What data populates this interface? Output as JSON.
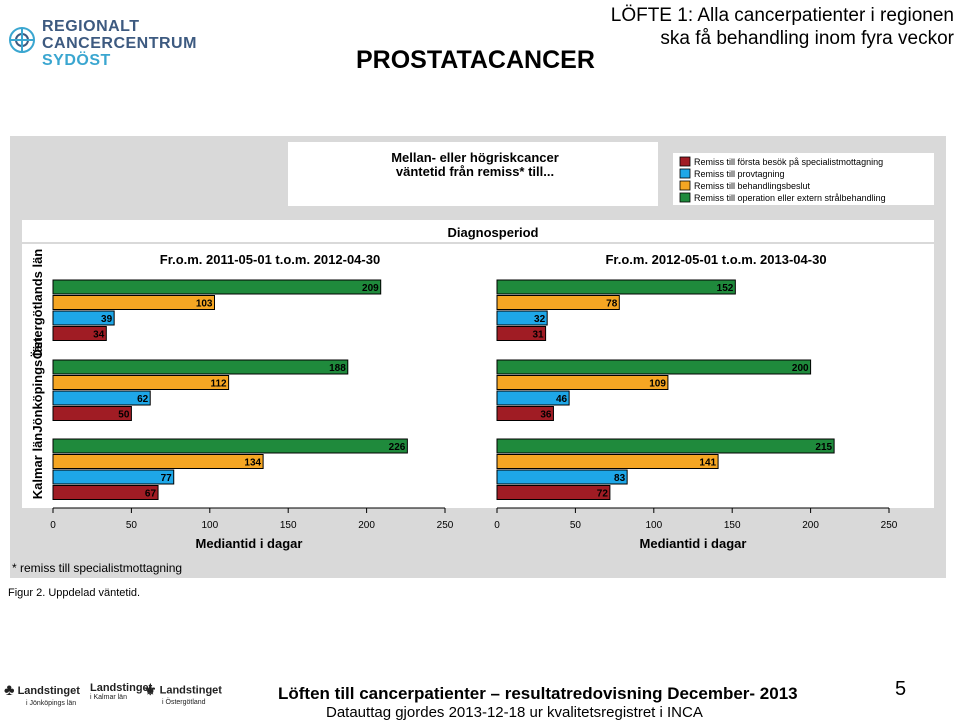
{
  "header": {
    "logo_lines": [
      "REGIONALT",
      "CANCERCENTRUM",
      "SYDÖST"
    ],
    "main_title": "PROSTATACANCER",
    "promise_line1": "LÖFTE 1: Alla cancerpatienter i regionen",
    "promise_line2": "ska få behandling inom fyra veckor"
  },
  "colors": {
    "first_visit": "#a01c24",
    "sampling": "#1ea7e8",
    "decision": "#f5a623",
    "treatment": "#1f8a3c",
    "panel": "#d9d9d9"
  },
  "chart_data": {
    "type": "bar",
    "orientation": "horizontal",
    "title": "Mellan- eller högriskcancer väntetid från remiss* till...",
    "title_line1": "Mellan- eller högriskcancer",
    "title_line2": "väntetid från remiss* till...",
    "super_title": "Diagnosperiod",
    "legend": [
      {
        "name": "Remiss till första besök på specialistmottagning",
        "color": "#a01c24"
      },
      {
        "name": "Remiss till provtagning",
        "color": "#1ea7e8"
      },
      {
        "name": "Remiss till behandlingsbeslut",
        "color": "#f5a623"
      },
      {
        "name": "Remiss till operation eller extern strålbehandling",
        "color": "#1f8a3c"
      }
    ],
    "legend_placement": "top-right",
    "categories": [
      "Östergötlands län",
      "Jönköpings län",
      "Kalmar län"
    ],
    "xlim": [
      0,
      250
    ],
    "xticks": [
      0,
      50,
      100,
      150,
      200,
      250
    ],
    "xlabel": "Mediantid i dagar",
    "panels": [
      {
        "title": "Fr.o.m. 2011-05-01 t.o.m. 2012-04-30",
        "values": [
          {
            "first_visit": 34,
            "sampling": 39,
            "decision": 103,
            "treatment": 209
          },
          {
            "first_visit": 50,
            "sampling": 62,
            "decision": 112,
            "treatment": 188
          },
          {
            "first_visit": 67,
            "sampling": 77,
            "decision": 134,
            "treatment": 226
          }
        ]
      },
      {
        "title": "Fr.o.m. 2012-05-01 t.o.m. 2013-04-30",
        "values": [
          {
            "first_visit": 31,
            "sampling": 32,
            "decision": 78,
            "treatment": 152
          },
          {
            "first_visit": 36,
            "sampling": 46,
            "decision": 109,
            "treatment": 200
          },
          {
            "first_visit": 72,
            "sampling": 83,
            "decision": 141,
            "treatment": 215
          }
        ]
      }
    ],
    "footnote": "* remiss till specialistmottagning"
  },
  "figure_caption": "Figur 2. Uppdelad väntetid.",
  "footer": {
    "logos": [
      {
        "name": "Landstinget",
        "sub": "i Jönköpings län"
      },
      {
        "name": "Landstinget",
        "sub": "i Kalmar län"
      },
      {
        "name": "Landstinget",
        "sub": "i Östergötland"
      }
    ],
    "title": "Löften till cancerpatienter – resultatredovisning December- 2013",
    "subtitle": "Datauttag gjordes 2013-12-18 ur kvalitetsregistret i INCA",
    "page_number": "5"
  }
}
